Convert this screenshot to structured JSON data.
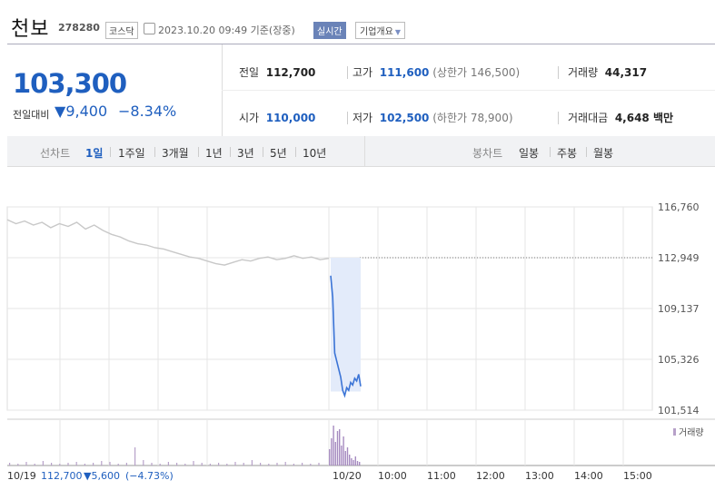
{
  "header": {
    "name": "천보",
    "code": "278280",
    "market": "코스닥",
    "datetime": "2023.10.20 09:49 기준(장중)",
    "live_label": "실시간",
    "company_label": "기업개요",
    "company_arrow": "▼"
  },
  "quote": {
    "price": "103,300",
    "change_label": "전일대비",
    "change_arrow": "▼",
    "change_value": "9,400",
    "change_pct": "−8.34%",
    "prev_label": "전일",
    "prev_value": "112,700",
    "high_label": "고가",
    "high_value": "111,600",
    "upper_limit": "(상한가 146,500)",
    "volume_label": "거래량",
    "volume_value": "44,317",
    "open_label": "시가",
    "open_value": "110,000",
    "low_label": "저가",
    "low_value": "102,500",
    "lower_limit": "(하한가 78,900)",
    "amount_label": "거래대금",
    "amount_value": "4,648 백만"
  },
  "tabs": {
    "line_label": "선차트",
    "line_items": [
      "1일",
      "1주일",
      "3개월",
      "1년",
      "3년",
      "5년",
      "10년"
    ],
    "active": "1일",
    "candle_label": "봉차트",
    "candle_items": [
      "일봉",
      "주봉",
      "월봉"
    ]
  },
  "chart_data": {
    "type": "line",
    "y_ticks": [
      "116,760",
      "112,949",
      "109,137",
      "105,326",
      "101,514"
    ],
    "ylim": [
      101514,
      116760
    ],
    "reference_price": 112949,
    "x_ticks": [
      "10/20",
      "10:00",
      "11:00",
      "12:00",
      "13:00",
      "14:00",
      "15:00"
    ],
    "volume_label": "거래량",
    "footer": {
      "date": "10/19",
      "price": "112,700",
      "change": "▼5,600",
      "pct": "(−4.73%)"
    },
    "series": [
      {
        "values_prev_day": [
          115800,
          115500,
          115700,
          115400,
          115600,
          115200,
          115500,
          115300,
          115600,
          115100,
          115400,
          115000,
          114700,
          114500,
          114200,
          114000,
          113900,
          113700,
          113600,
          113400,
          113200,
          113000,
          112900,
          112700,
          112500,
          112400,
          112600,
          112800,
          112700,
          112900,
          113000,
          112800,
          112900,
          113100,
          112900,
          113000,
          112800,
          112900
        ],
        "values_today": [
          111600,
          110000,
          105800,
          105200,
          104600,
          104000,
          103000,
          102600,
          103200,
          103000,
          103600,
          103400,
          103900,
          103700,
          104200,
          103300
        ]
      }
    ]
  },
  "colors": {
    "price_blue": "#1f5fbf",
    "line_prev": "#c8c8c8",
    "line_today": "#3b74d6",
    "fill_today": "#e3ebfa",
    "volume": "#b7a1c9",
    "grid": "#e6e6e6"
  }
}
